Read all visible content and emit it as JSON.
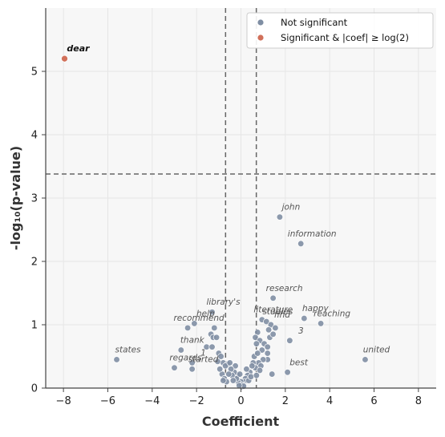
{
  "chart_data": {
    "type": "scatter",
    "title": "",
    "xlabel": "Coefficient",
    "ylabel": "-log₁₀(p-value)",
    "xlim": [
      -8.8,
      8.8
    ],
    "ylim": [
      0,
      6.0
    ],
    "xticks": [
      -8,
      -6,
      -4,
      -2,
      0,
      2,
      4,
      6,
      8
    ],
    "yticks": [
      0,
      1,
      2,
      3,
      4,
      5
    ],
    "grid": true,
    "threshold_lines": {
      "vertical": [
        -0.693,
        0.693
      ],
      "horizontal": 3.38
    },
    "legend": {
      "position": "top-right",
      "entries": [
        {
          "label": "Not significant",
          "color": "#7f8ea3"
        },
        {
          "label": "Significant & |coef| ≥ log(2)",
          "color": "#d1705a"
        }
      ]
    },
    "colors": {
      "not_significant": "#7f8ea3",
      "significant": "#d1705a",
      "grid": "#e6e6e6",
      "plot_bg": "#f7f7f7"
    },
    "series": [
      {
        "name": "Not significant",
        "points": [
          [
            1.75,
            2.7
          ],
          [
            2.7,
            2.28
          ],
          [
            1.45,
            1.42
          ],
          [
            -1.3,
            1.2
          ],
          [
            2.85,
            1.1
          ],
          [
            3.6,
            1.02
          ],
          [
            -2.1,
            1.02
          ],
          [
            -2.4,
            0.95
          ],
          [
            -1.2,
            0.95
          ],
          [
            -1.35,
            0.85
          ],
          [
            -1.25,
            0.8
          ],
          [
            -1.1,
            0.8
          ],
          [
            -1.55,
            0.65
          ],
          [
            -1.3,
            0.65
          ],
          [
            -1.0,
            0.55
          ],
          [
            -0.9,
            0.5
          ],
          [
            -0.8,
            0.4
          ],
          [
            -2.7,
            0.6
          ],
          [
            -2.2,
            0.4
          ],
          [
            -2.2,
            0.3
          ],
          [
            -3.0,
            0.32
          ],
          [
            -5.6,
            0.45
          ],
          [
            5.6,
            0.45
          ],
          [
            2.1,
            0.25
          ],
          [
            2.2,
            0.75
          ],
          [
            1.4,
            0.22
          ],
          [
            0.95,
            1.08
          ],
          [
            1.15,
            1.05
          ],
          [
            1.35,
            1.0
          ],
          [
            1.55,
            0.95
          ],
          [
            1.25,
            0.92
          ],
          [
            1.3,
            0.8
          ],
          [
            1.45,
            0.85
          ],
          [
            0.75,
            0.88
          ],
          [
            0.65,
            0.8
          ],
          [
            0.85,
            0.75
          ],
          [
            0.7,
            0.7
          ],
          [
            1.05,
            0.7
          ],
          [
            1.2,
            0.65
          ],
          [
            0.95,
            0.6
          ],
          [
            1.2,
            0.55
          ],
          [
            0.6,
            0.5
          ],
          [
            0.75,
            0.55
          ],
          [
            1.2,
            0.45
          ],
          [
            1.0,
            0.45
          ],
          [
            0.8,
            0.4
          ],
          [
            0.55,
            0.4
          ],
          [
            0.9,
            0.35
          ],
          [
            0.65,
            0.32
          ],
          [
            0.85,
            0.28
          ],
          [
            0.5,
            0.35
          ],
          [
            0.4,
            0.25
          ],
          [
            0.3,
            0.2
          ],
          [
            0.25,
            0.3
          ],
          [
            0.2,
            0.15
          ],
          [
            0.15,
            0.1
          ],
          [
            0.1,
            0.05
          ],
          [
            0.05,
            0.02
          ],
          [
            0.0,
            0.1
          ],
          [
            -0.1,
            0.08
          ],
          [
            -0.15,
            0.2
          ],
          [
            -0.2,
            0.15
          ],
          [
            -0.3,
            0.25
          ],
          [
            -0.25,
            0.35
          ],
          [
            -0.4,
            0.2
          ],
          [
            -0.45,
            0.3
          ],
          [
            -0.55,
            0.22
          ],
          [
            -0.6,
            0.38
          ],
          [
            -0.7,
            0.35
          ],
          [
            -0.5,
            0.4
          ],
          [
            -0.85,
            0.22
          ],
          [
            -0.75,
            0.15
          ],
          [
            -0.65,
            0.1
          ],
          [
            -0.05,
            0.22
          ],
          [
            0.02,
            0.05
          ],
          [
            0.12,
            0.03
          ],
          [
            -0.08,
            0.04
          ],
          [
            0.35,
            0.12
          ],
          [
            -0.35,
            0.12
          ],
          [
            0.45,
            0.18
          ],
          [
            -0.95,
            0.3
          ],
          [
            -1.05,
            0.42
          ],
          [
            -0.8,
            0.12
          ],
          [
            0.7,
            0.2
          ]
        ]
      },
      {
        "name": "Significant & |coef| ≥ log(2)",
        "points": [
          [
            -7.95,
            5.2
          ]
        ]
      }
    ],
    "annotations": [
      {
        "text": "dear",
        "x": -7.95,
        "y": 5.2,
        "significant": true
      },
      {
        "text": "john",
        "x": 1.75,
        "y": 2.7
      },
      {
        "text": "information",
        "x": 2.7,
        "y": 2.28
      },
      {
        "text": "research",
        "x": 1.45,
        "y": 1.42
      },
      {
        "text": "library's",
        "x": -1.3,
        "y": 1.2
      },
      {
        "text": "literature",
        "x": 0.95,
        "y": 1.08
      },
      {
        "text": "happy",
        "x": 2.85,
        "y": 1.1
      },
      {
        "text": "reaching",
        "x": 3.6,
        "y": 1.02
      },
      {
        "text": "help",
        "x": -2.1,
        "y": 1.02
      },
      {
        "text": "recommend",
        "x": -2.4,
        "y": 0.95
      },
      {
        "text": "studies",
        "x": 1.15,
        "y": 1.05
      },
      {
        "text": "find",
        "x": 1.35,
        "y": 1.0
      },
      {
        "text": "3",
        "x": 2.2,
        "y": 0.75
      },
      {
        "text": "thank",
        "x": -2.7,
        "y": 0.6
      },
      {
        "text": "1",
        "x": -2.2,
        "y": 0.4
      },
      {
        "text": "regards",
        "x": -3.0,
        "y": 0.32
      },
      {
        "text": "started",
        "x": -2.2,
        "y": 0.3
      },
      {
        "text": "states",
        "x": -5.6,
        "y": 0.45
      },
      {
        "text": "united",
        "x": 5.6,
        "y": 0.45
      },
      {
        "text": "best",
        "x": 2.1,
        "y": 0.25
      }
    ]
  }
}
